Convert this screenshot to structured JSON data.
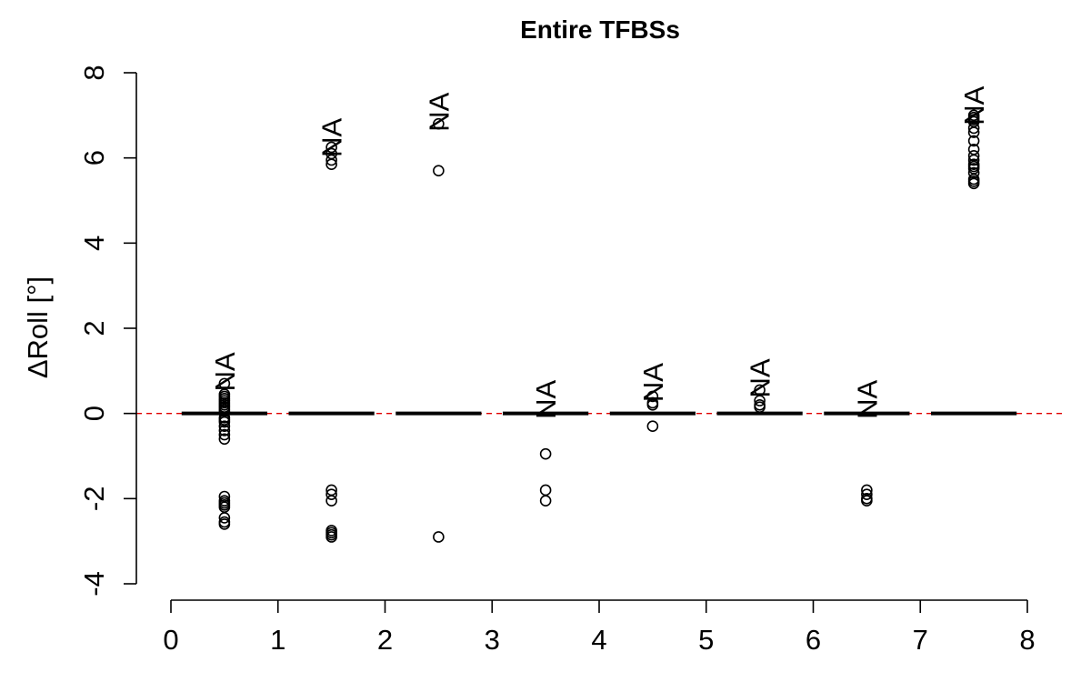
{
  "chart_data": {
    "type": "box",
    "title": "Entire TFBSs",
    "xlabel": "",
    "ylabel": "ΔRoll [°]",
    "xlim": [
      0,
      8
    ],
    "ylim": [
      -4,
      8
    ],
    "xticks": [
      "0",
      "1",
      "2",
      "3",
      "4",
      "5",
      "6",
      "7",
      "8"
    ],
    "yticks": [
      "-4",
      "-2",
      "0",
      "2",
      "4",
      "6",
      "8"
    ],
    "reference_line": {
      "y": 0,
      "color": "#e00000",
      "style": "dashed"
    },
    "boxes": [
      {
        "position": 0.5,
        "median": 0,
        "na_label": "NA",
        "na_y": 1.5,
        "outliers": [
          0.7,
          0.45,
          0.4,
          0.35,
          0.3,
          0.25,
          0.2,
          0.15,
          0.1,
          0.05,
          -0.1,
          -0.15,
          -0.2,
          -0.3,
          -0.4,
          -0.5,
          -0.6,
          -1.95,
          -2.05,
          -2.1,
          -2.15,
          -2.2,
          -2.45,
          -2.55,
          -2.6
        ]
      },
      {
        "position": 1.5,
        "median": 0,
        "na_label": "NA",
        "na_y": 7.0,
        "outliers": [
          6.25,
          6.1,
          5.95,
          5.85,
          -1.8,
          -1.9,
          -2.05,
          -2.75,
          -2.8,
          -2.85,
          -2.9
        ]
      },
      {
        "position": 2.5,
        "median": 0,
        "na_label": "NA",
        "na_y": 7.6,
        "outliers": [
          6.8,
          5.7,
          -2.9
        ]
      },
      {
        "position": 3.5,
        "median": 0,
        "na_label": "NA",
        "na_y": 0.85,
        "outliers": [
          -0.95,
          -1.8,
          -2.05
        ]
      },
      {
        "position": 4.5,
        "median": 0,
        "na_label": "NA",
        "na_y": 1.25,
        "outliers": [
          0.4,
          0.25,
          0.2,
          -0.3
        ]
      },
      {
        "position": 5.5,
        "median": 0,
        "na_label": "NA",
        "na_y": 1.35,
        "outliers": [
          0.55,
          0.3,
          0.2,
          0.15
        ]
      },
      {
        "position": 6.5,
        "median": 0,
        "na_label": "NA",
        "na_y": 0.85,
        "outliers": [
          -1.8,
          -1.9,
          -2.0,
          -2.05
        ]
      },
      {
        "position": 7.5,
        "median": 0,
        "na_label": "NA",
        "na_y": 7.75,
        "outliers": [
          7.0,
          6.95,
          6.9,
          6.85,
          6.7,
          6.6,
          6.4,
          6.2,
          6.05,
          5.95,
          5.85,
          5.8,
          5.75,
          5.65,
          5.5,
          5.45,
          5.4
        ]
      }
    ]
  }
}
